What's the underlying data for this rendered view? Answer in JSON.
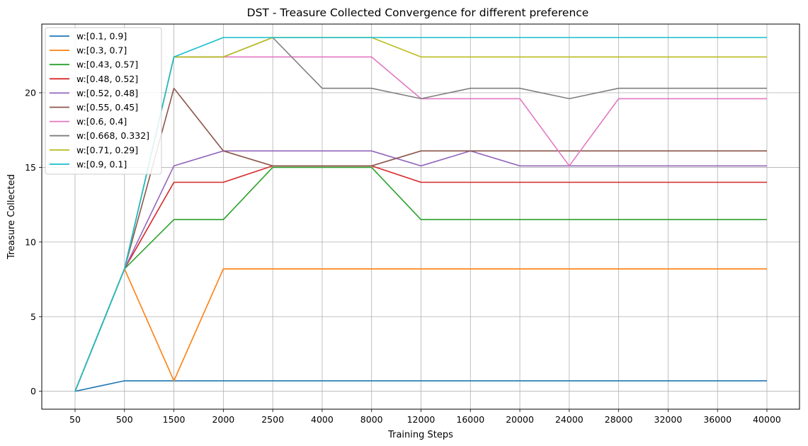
{
  "chart_data": {
    "type": "line",
    "title": "DST - Treasure Collected Convergence for different preference",
    "xlabel": "Training Steps",
    "ylabel": "Treasure Collected",
    "x": [
      "50",
      "500",
      "1500",
      "2000",
      "2500",
      "4000",
      "8000",
      "12000",
      "16000",
      "20000",
      "24000",
      "28000",
      "32000",
      "36000",
      "40000"
    ],
    "ylim": [
      -1.2,
      24.6
    ],
    "yticks": [
      0,
      5,
      10,
      15,
      20
    ],
    "grid": true,
    "legend_position": "upper-left",
    "series": [
      {
        "name": "w:[0.1, 0.9]",
        "color": "#1f77b4",
        "values": [
          0,
          0.7,
          0.7,
          0.7,
          0.7,
          0.7,
          0.7,
          0.7,
          0.7,
          0.7,
          0.7,
          0.7,
          0.7,
          0.7,
          0.7
        ]
      },
      {
        "name": "w:[0.3, 0.7]",
        "color": "#ff7f0e",
        "values": [
          0,
          8.2,
          0.7,
          8.2,
          8.2,
          8.2,
          8.2,
          8.2,
          8.2,
          8.2,
          8.2,
          8.2,
          8.2,
          8.2,
          8.2
        ]
      },
      {
        "name": "w:[0.43, 0.57]",
        "color": "#2ca02c",
        "values": [
          0,
          8.2,
          11.5,
          11.5,
          15.0,
          15.0,
          15.0,
          11.5,
          11.5,
          11.5,
          11.5,
          11.5,
          11.5,
          11.5,
          11.5
        ]
      },
      {
        "name": "w:[0.48, 0.52]",
        "color": "#d62728",
        "values": [
          0,
          8.2,
          14.0,
          14.0,
          15.1,
          15.1,
          15.1,
          14.0,
          14.0,
          14.0,
          14.0,
          14.0,
          14.0,
          14.0,
          14.0
        ]
      },
      {
        "name": "w:[0.52, 0.48]",
        "color": "#9467bd",
        "values": [
          0,
          8.2,
          15.1,
          16.1,
          16.1,
          16.1,
          16.1,
          15.1,
          16.1,
          15.1,
          15.1,
          15.1,
          15.1,
          15.1,
          15.1
        ]
      },
      {
        "name": "w:[0.55, 0.45]",
        "color": "#8c564b",
        "values": [
          0,
          8.2,
          20.3,
          16.1,
          15.1,
          15.1,
          15.1,
          16.1,
          16.1,
          16.1,
          16.1,
          16.1,
          16.1,
          16.1,
          16.1
        ]
      },
      {
        "name": "w:[0.6, 0.4]",
        "color": "#e377c2",
        "values": [
          0,
          8.2,
          22.4,
          22.4,
          22.4,
          22.4,
          22.4,
          19.6,
          19.6,
          19.6,
          15.1,
          19.6,
          19.6,
          19.6,
          19.6
        ]
      },
      {
        "name": "w:[0.668, 0.332]",
        "color": "#7f7f7f",
        "values": [
          0,
          8.2,
          22.4,
          22.4,
          23.7,
          20.3,
          20.3,
          19.6,
          20.3,
          20.3,
          19.6,
          20.3,
          20.3,
          20.3,
          20.3
        ]
      },
      {
        "name": "w:[0.71, 0.29]",
        "color": "#bcbd22",
        "values": [
          0,
          8.2,
          22.4,
          22.4,
          23.7,
          23.7,
          23.7,
          22.4,
          22.4,
          22.4,
          22.4,
          22.4,
          22.4,
          22.4,
          22.4
        ]
      },
      {
        "name": "w:[0.9, 0.1]",
        "color": "#17becf",
        "values": [
          0,
          8.2,
          22.4,
          23.7,
          23.7,
          23.7,
          23.7,
          23.7,
          23.7,
          23.7,
          23.7,
          23.7,
          23.7,
          23.7,
          23.7
        ]
      }
    ]
  }
}
